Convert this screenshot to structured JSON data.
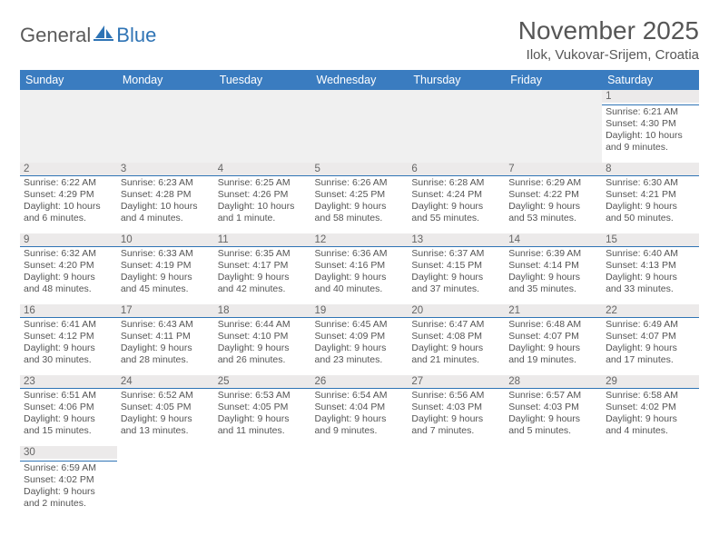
{
  "brand": {
    "part1": "General",
    "part2": "Blue"
  },
  "title": "November 2025",
  "location": "Ilok, Vukovar-Srijem, Croatia",
  "colors": {
    "header_bg": "#3a7cc0",
    "header_text": "#ffffff",
    "rule": "#2f74b5",
    "daynum_bg": "#eceaea",
    "blank_bg": "#f0f0f0",
    "text": "#555555",
    "title_text": "#565656"
  },
  "weekdays": [
    "Sunday",
    "Monday",
    "Tuesday",
    "Wednesday",
    "Thursday",
    "Friday",
    "Saturday"
  ],
  "weeks": [
    [
      null,
      null,
      null,
      null,
      null,
      null,
      {
        "n": "1",
        "sr": "6:21 AM",
        "ss": "4:30 PM",
        "d": "10 hours and 9 minutes."
      }
    ],
    [
      {
        "n": "2",
        "sr": "6:22 AM",
        "ss": "4:29 PM",
        "d": "10 hours and 6 minutes."
      },
      {
        "n": "3",
        "sr": "6:23 AM",
        "ss": "4:28 PM",
        "d": "10 hours and 4 minutes."
      },
      {
        "n": "4",
        "sr": "6:25 AM",
        "ss": "4:26 PM",
        "d": "10 hours and 1 minute."
      },
      {
        "n": "5",
        "sr": "6:26 AM",
        "ss": "4:25 PM",
        "d": "9 hours and 58 minutes."
      },
      {
        "n": "6",
        "sr": "6:28 AM",
        "ss": "4:24 PM",
        "d": "9 hours and 55 minutes."
      },
      {
        "n": "7",
        "sr": "6:29 AM",
        "ss": "4:22 PM",
        "d": "9 hours and 53 minutes."
      },
      {
        "n": "8",
        "sr": "6:30 AM",
        "ss": "4:21 PM",
        "d": "9 hours and 50 minutes."
      }
    ],
    [
      {
        "n": "9",
        "sr": "6:32 AM",
        "ss": "4:20 PM",
        "d": "9 hours and 48 minutes."
      },
      {
        "n": "10",
        "sr": "6:33 AM",
        "ss": "4:19 PM",
        "d": "9 hours and 45 minutes."
      },
      {
        "n": "11",
        "sr": "6:35 AM",
        "ss": "4:17 PM",
        "d": "9 hours and 42 minutes."
      },
      {
        "n": "12",
        "sr": "6:36 AM",
        "ss": "4:16 PM",
        "d": "9 hours and 40 minutes."
      },
      {
        "n": "13",
        "sr": "6:37 AM",
        "ss": "4:15 PM",
        "d": "9 hours and 37 minutes."
      },
      {
        "n": "14",
        "sr": "6:39 AM",
        "ss": "4:14 PM",
        "d": "9 hours and 35 minutes."
      },
      {
        "n": "15",
        "sr": "6:40 AM",
        "ss": "4:13 PM",
        "d": "9 hours and 33 minutes."
      }
    ],
    [
      {
        "n": "16",
        "sr": "6:41 AM",
        "ss": "4:12 PM",
        "d": "9 hours and 30 minutes."
      },
      {
        "n": "17",
        "sr": "6:43 AM",
        "ss": "4:11 PM",
        "d": "9 hours and 28 minutes."
      },
      {
        "n": "18",
        "sr": "6:44 AM",
        "ss": "4:10 PM",
        "d": "9 hours and 26 minutes."
      },
      {
        "n": "19",
        "sr": "6:45 AM",
        "ss": "4:09 PM",
        "d": "9 hours and 23 minutes."
      },
      {
        "n": "20",
        "sr": "6:47 AM",
        "ss": "4:08 PM",
        "d": "9 hours and 21 minutes."
      },
      {
        "n": "21",
        "sr": "6:48 AM",
        "ss": "4:07 PM",
        "d": "9 hours and 19 minutes."
      },
      {
        "n": "22",
        "sr": "6:49 AM",
        "ss": "4:07 PM",
        "d": "9 hours and 17 minutes."
      }
    ],
    [
      {
        "n": "23",
        "sr": "6:51 AM",
        "ss": "4:06 PM",
        "d": "9 hours and 15 minutes."
      },
      {
        "n": "24",
        "sr": "6:52 AM",
        "ss": "4:05 PM",
        "d": "9 hours and 13 minutes."
      },
      {
        "n": "25",
        "sr": "6:53 AM",
        "ss": "4:05 PM",
        "d": "9 hours and 11 minutes."
      },
      {
        "n": "26",
        "sr": "6:54 AM",
        "ss": "4:04 PM",
        "d": "9 hours and 9 minutes."
      },
      {
        "n": "27",
        "sr": "6:56 AM",
        "ss": "4:03 PM",
        "d": "9 hours and 7 minutes."
      },
      {
        "n": "28",
        "sr": "6:57 AM",
        "ss": "4:03 PM",
        "d": "9 hours and 5 minutes."
      },
      {
        "n": "29",
        "sr": "6:58 AM",
        "ss": "4:02 PM",
        "d": "9 hours and 4 minutes."
      }
    ],
    [
      {
        "n": "30",
        "sr": "6:59 AM",
        "ss": "4:02 PM",
        "d": "9 hours and 2 minutes."
      },
      null,
      null,
      null,
      null,
      null,
      null
    ]
  ],
  "labels": {
    "sunrise": "Sunrise:",
    "sunset": "Sunset:",
    "daylight": "Daylight:"
  }
}
